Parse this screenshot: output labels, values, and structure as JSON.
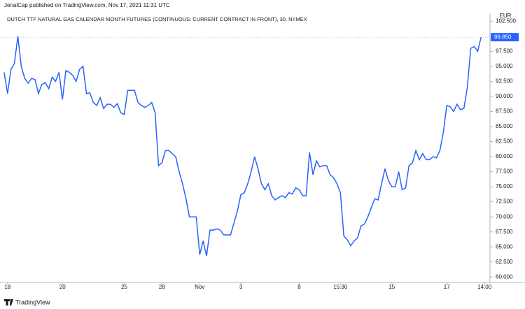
{
  "header": {
    "publisher": "JenalCap published on TradingView.com, Nov 17, 2021 11:31 UTC",
    "footer": "TradingView"
  },
  "chart_data": {
    "type": "line",
    "title": "DUTCH TTF NATURAL GAS CALENDAR MONTH FUTURES (CONTINUOUS: CURRENT CONTRACT IN FRONT), 30, NYMEX",
    "currency": "EUR",
    "last_label": "99.850",
    "color": "#2962ff",
    "values": [
      94.0,
      90.5,
      94.5,
      95.5,
      100.0,
      95.0,
      93.0,
      92.2,
      93.0,
      92.8,
      90.5,
      92.0,
      92.3,
      91.3,
      93.2,
      92.5,
      94.0,
      89.5,
      94.3,
      94.0,
      93.5,
      92.5,
      94.5,
      95.0,
      90.5,
      90.6,
      89.0,
      88.5,
      89.8,
      88.0,
      88.7,
      88.7,
      88.2,
      88.8,
      87.3,
      87.0,
      91.0,
      91.0,
      91.0,
      89.0,
      88.5,
      88.2,
      88.5,
      89.0,
      87.3,
      78.5,
      79.0,
      81.0,
      81.0,
      80.5,
      80.0,
      77.5,
      75.5,
      73.0,
      70.0,
      70.0,
      70.0,
      63.7,
      66.0,
      63.5,
      67.8,
      67.8,
      68.0,
      67.8,
      67.0,
      67.0,
      67.0,
      69.0,
      71.0,
      73.7,
      74.0,
      75.5,
      77.5,
      80.0,
      78.0,
      75.5,
      74.5,
      75.5,
      73.5,
      72.8,
      73.2,
      73.5,
      73.2,
      74.0,
      73.8,
      74.8,
      74.5,
      73.5,
      73.5,
      80.7,
      77.0,
      79.3,
      78.3,
      78.5,
      78.5,
      77.0,
      76.5,
      75.5,
      74.0,
      66.8,
      66.2,
      65.2,
      66.0,
      66.5,
      68.5,
      68.8,
      70.0,
      71.5,
      73.0,
      72.8,
      75.5,
      78.0,
      76.0,
      75.0,
      75.0,
      77.5,
      74.5,
      74.8,
      78.5,
      79.0,
      81.0,
      79.5,
      80.5,
      79.5,
      79.5,
      80.0,
      79.8,
      81.0,
      84.0,
      88.5,
      88.3,
      87.5,
      88.7,
      87.8,
      88.0,
      91.5,
      98.0,
      98.3,
      97.5,
      99.85
    ],
    "xlim": [
      -1.2,
      141.6
    ],
    "xticks": [
      {
        "value": 1,
        "label": "18"
      },
      {
        "value": 17,
        "label": "20"
      },
      {
        "value": 35,
        "label": "25"
      },
      {
        "value": 46,
        "label": "28"
      },
      {
        "value": 57,
        "label": "Nov"
      },
      {
        "value": 69,
        "label": "3"
      },
      {
        "value": 86,
        "label": "8"
      },
      {
        "value": 98,
        "label": "15:30"
      },
      {
        "value": 113,
        "label": "15"
      },
      {
        "value": 129,
        "label": "17"
      },
      {
        "value": 140,
        "label": "14:00"
      }
    ],
    "ylim": [
      59.1,
      103.7
    ],
    "yticks": [
      {
        "value": 60,
        "label": "60.000"
      },
      {
        "value": 62.5,
        "label": "62.500"
      },
      {
        "value": 65,
        "label": "65.000"
      },
      {
        "value": 67.5,
        "label": "67.500"
      },
      {
        "value": 70,
        "label": "70.000"
      },
      {
        "value": 72.5,
        "label": "72.500"
      },
      {
        "value": 75,
        "label": "75.000"
      },
      {
        "value": 77.5,
        "label": "77.500"
      },
      {
        "value": 80,
        "label": "80.000"
      },
      {
        "value": 82.5,
        "label": "82.500"
      },
      {
        "value": 85,
        "label": "85.000"
      },
      {
        "value": 87.5,
        "label": "87.500"
      },
      {
        "value": 90,
        "label": "90.000"
      },
      {
        "value": 92.5,
        "label": "92.500"
      },
      {
        "value": 95,
        "label": "95.000"
      },
      {
        "value": 97.5,
        "label": "97.500"
      },
      {
        "value": 102.5,
        "label": "102.500"
      }
    ]
  }
}
